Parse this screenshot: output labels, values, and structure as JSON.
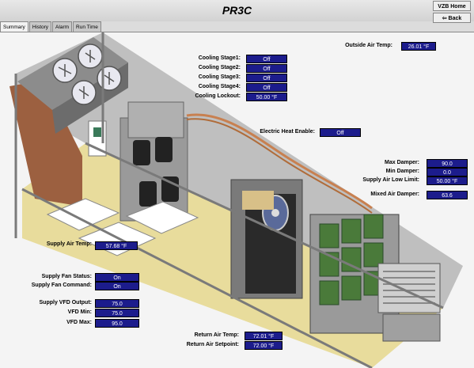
{
  "window": {
    "title": "PR3C"
  },
  "nav": {
    "home_label": "VZB Home",
    "back_label": "Back"
  },
  "tabs": [
    {
      "label": "Summary"
    },
    {
      "label": "History"
    },
    {
      "label": "Alarm"
    },
    {
      "label": "Run Time"
    }
  ],
  "points": {
    "outside_air_temp": {
      "label": "Outside Air Temp:",
      "value": "26.01 °F"
    },
    "cooling_stage1": {
      "label": "Cooling Stage1:",
      "value": "Off"
    },
    "cooling_stage2": {
      "label": "Cooling Stage2:",
      "value": "Off"
    },
    "cooling_stage3": {
      "label": "Cooling Stage3:",
      "value": "Off"
    },
    "cooling_stage4": {
      "label": "Cooling Stage4:",
      "value": "Off"
    },
    "cooling_lockout": {
      "label": "Cooling Lockout:",
      "value": "50.00 °F"
    },
    "electric_heat_enable": {
      "label": "Electric Heat Enable:",
      "value": "Off"
    },
    "max_damper": {
      "label": "Max Damper:",
      "value": "90.0"
    },
    "min_damper": {
      "label": "Min Damper:",
      "value": "0.0"
    },
    "supply_air_low_limit": {
      "label": "Supply Air Low Limit:",
      "value": "50.00 °F"
    },
    "mixed_air_damper": {
      "label": "Mixed Air Damper:",
      "value": "63.6"
    },
    "supply_air_temp": {
      "label": "Supply Air Temp:",
      "value": "57.68 °F"
    },
    "supply_fan_status": {
      "label": "Supply Fan Status:",
      "value": "On"
    },
    "supply_fan_command": {
      "label": "Supply Fan Command:",
      "value": "On"
    },
    "supply_vfd_output": {
      "label": "Supply VFD Output:",
      "value": "75.0"
    },
    "vfd_min": {
      "label": "VFD Min:",
      "value": "75.0"
    },
    "vfd_max": {
      "label": "VFD Max:",
      "value": "95.0"
    },
    "return_air_temp": {
      "label": "Return Air Temp:",
      "value": "72.01 °F"
    },
    "return_air_setpoint": {
      "label": "Return Air Setpoint:",
      "value": "72.00 °F"
    }
  },
  "colors": {
    "value_box": "#1c1c8c",
    "floor": "#e8dc9c",
    "frame": "#a8a8a8",
    "brick": "#9c6040",
    "pipe": "#c88050",
    "coil": "#4a7a3a"
  },
  "icons": [
    "exhaust-fan-icon",
    "compressor-icon",
    "supply-fan-icon",
    "filter-bank-icon",
    "back-arrow-icon"
  ]
}
